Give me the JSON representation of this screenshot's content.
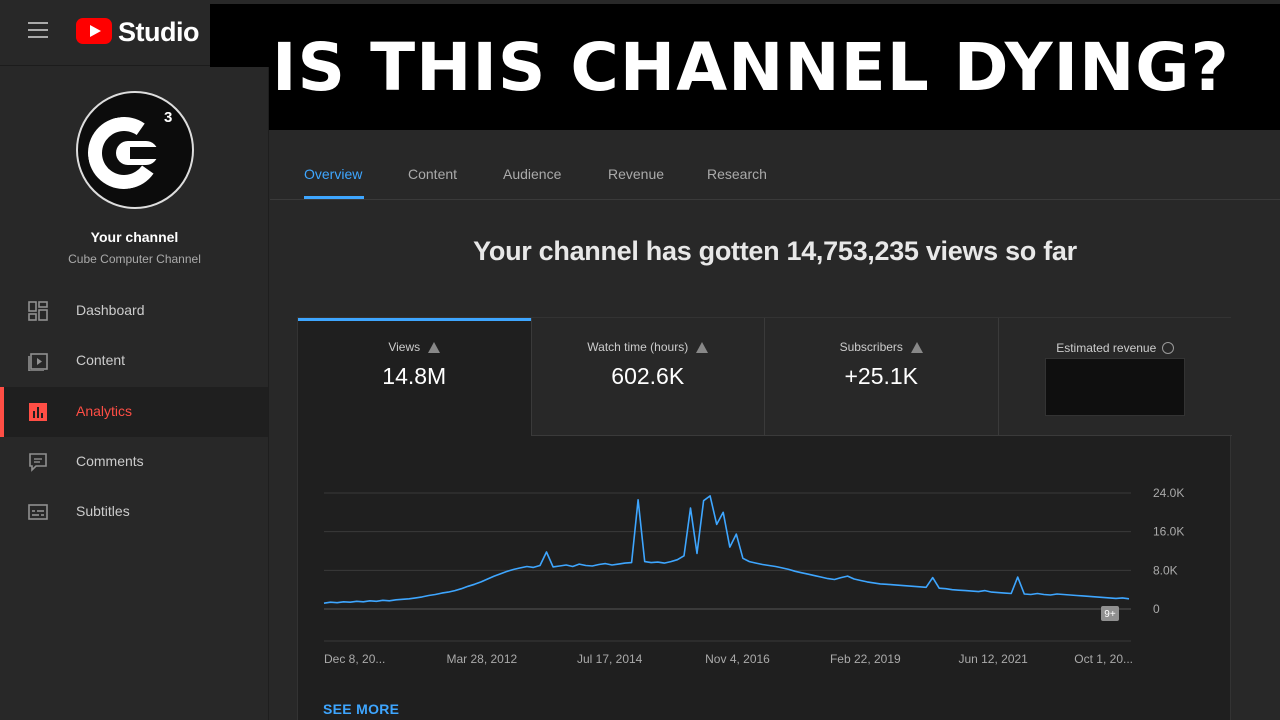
{
  "app": {
    "studio_label": "Studio"
  },
  "banner": {
    "text": "IS THIS CHANNEL DYING?"
  },
  "channel": {
    "title": "Your channel",
    "name": "Cube Computer Channel",
    "avatar_superscript": "3"
  },
  "sidebar": {
    "items": [
      {
        "label": "Dashboard",
        "icon": "dashboard-icon",
        "active": false
      },
      {
        "label": "Content",
        "icon": "content-icon",
        "active": false
      },
      {
        "label": "Analytics",
        "icon": "analytics-icon",
        "active": true
      },
      {
        "label": "Comments",
        "icon": "comments-icon",
        "active": false
      },
      {
        "label": "Subtitles",
        "icon": "subtitles-icon",
        "active": false
      }
    ]
  },
  "tabs": [
    {
      "label": "Overview",
      "active": true
    },
    {
      "label": "Content",
      "active": false
    },
    {
      "label": "Audience",
      "active": false
    },
    {
      "label": "Revenue",
      "active": false
    },
    {
      "label": "Research",
      "active": false
    }
  ],
  "headline": "Your channel has gotten 14,753,235 views so far",
  "metrics": [
    {
      "label": "Views",
      "value": "14.8M",
      "icon": "warning-icon"
    },
    {
      "label": "Watch time (hours)",
      "value": "602.6K",
      "icon": "warning-icon"
    },
    {
      "label": "Subscribers",
      "value": "+25.1K",
      "icon": "warning-icon"
    },
    {
      "label": "Estimated revenue",
      "value": "",
      "icon": "clock-icon",
      "redacted": true
    }
  ],
  "see_more": "SEE MORE",
  "badge": "9+",
  "colors": {
    "accent": "#3ea6ff",
    "line": "#3ea6ff",
    "active_nav": "#ff4e45",
    "brand": "#ff0000"
  },
  "chart_data": {
    "type": "line",
    "series": [
      {
        "values": [
          1200,
          1400,
          1300,
          1500,
          1400,
          1600,
          1500,
          1700,
          1600,
          1800,
          1700,
          1900,
          2000,
          2100,
          2300,
          2500,
          2800,
          3000,
          3300,
          3500,
          3800,
          4200,
          4700,
          5100,
          5600,
          6200,
          6800,
          7300,
          7800,
          8200,
          8500,
          8800,
          8600,
          9000,
          11800,
          8700,
          8900,
          9100,
          8800,
          9300,
          9000,
          8900,
          9200,
          9400,
          9100,
          9300,
          9500,
          9600,
          22600,
          9800,
          9600,
          9700,
          9500,
          9800,
          10200,
          11000,
          20900,
          11500,
          22400,
          23400,
          17500,
          20000,
          12800,
          15500,
          10500,
          9800,
          9500,
          9200,
          9000,
          8800,
          8500,
          8200,
          7800,
          7500,
          7200,
          6900,
          6600,
          6300,
          6100,
          6500,
          6800,
          6200,
          5900,
          5600,
          5400,
          5200,
          5100,
          5000,
          4900,
          4800,
          4700,
          4600,
          4500,
          6500,
          4300,
          4200,
          4000,
          3900,
          3800,
          3700,
          3600,
          3800,
          3500,
          3400,
          3300,
          3200,
          6600,
          3100,
          3000,
          3200,
          3000,
          2900,
          3100,
          3000,
          2900,
          2800,
          2700,
          2600,
          2500,
          2400,
          2300,
          2200,
          2300,
          2100
        ]
      }
    ],
    "x_tick_labels": [
      "Dec 8, 20...",
      "Mar 28, 2012",
      "Jul 17, 2014",
      "Nov 4, 2016",
      "Feb 22, 2019",
      "Jun 12, 2021",
      "Oct 1, 20..."
    ],
    "y_tick_labels": [
      "24.0K",
      "16.0K",
      "8.0K",
      "0"
    ],
    "ylim": [
      0,
      24000
    ],
    "grid": true
  }
}
